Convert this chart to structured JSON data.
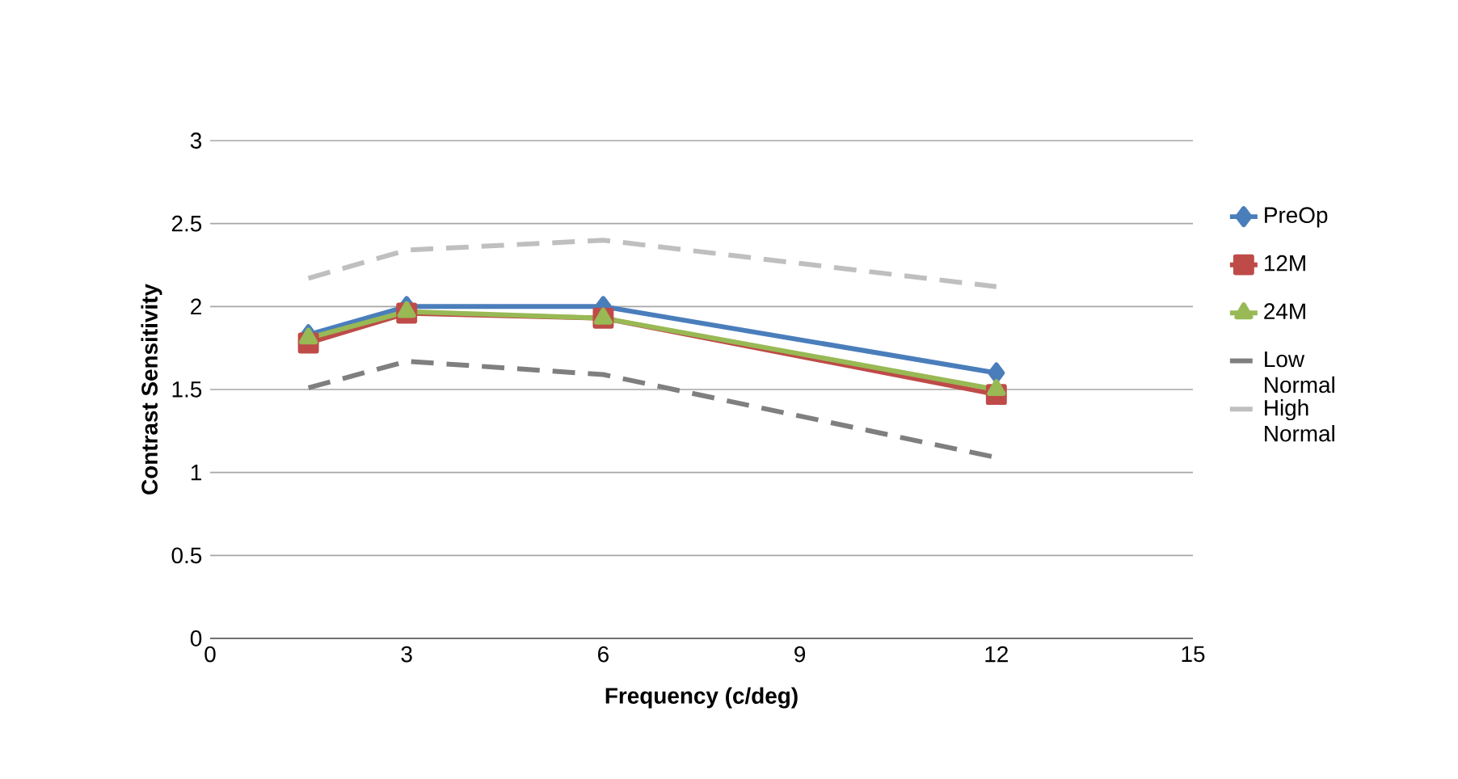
{
  "chart_data": {
    "type": "line",
    "xlabel": "Frequency (c/deg)",
    "ylabel": "Contrast Sensitivity",
    "x": [
      1.5,
      3,
      6,
      12
    ],
    "series": [
      {
        "name": "PreOp",
        "color": "#4a7ebb",
        "marker": "diamond",
        "line_style": "solid",
        "values": [
          1.83,
          2.0,
          2.0,
          1.6
        ]
      },
      {
        "name": "12M",
        "color": "#be4b48",
        "marker": "square",
        "line_style": "solid",
        "values": [
          1.78,
          1.96,
          1.93,
          1.47
        ]
      },
      {
        "name": "24M",
        "color": "#98b954",
        "marker": "triangle",
        "line_style": "solid",
        "values": [
          1.81,
          1.97,
          1.93,
          1.5
        ]
      },
      {
        "name": "Low Normal",
        "color": "#7f7f7f",
        "marker": "none",
        "line_style": "dashed",
        "values": [
          1.51,
          1.67,
          1.59,
          1.09
        ]
      },
      {
        "name": "High Normal",
        "color": "#bfbfbf",
        "marker": "none",
        "line_style": "dashed",
        "values": [
          2.17,
          2.34,
          2.4,
          2.12
        ]
      }
    ],
    "xlim": [
      0,
      15
    ],
    "xticks": [
      0,
      3,
      6,
      9,
      12,
      15
    ],
    "ylim": [
      0,
      3
    ],
    "yticks": [
      0,
      0.5,
      1,
      1.5,
      2,
      2.5,
      3
    ],
    "grid": "y",
    "legend": "right"
  }
}
